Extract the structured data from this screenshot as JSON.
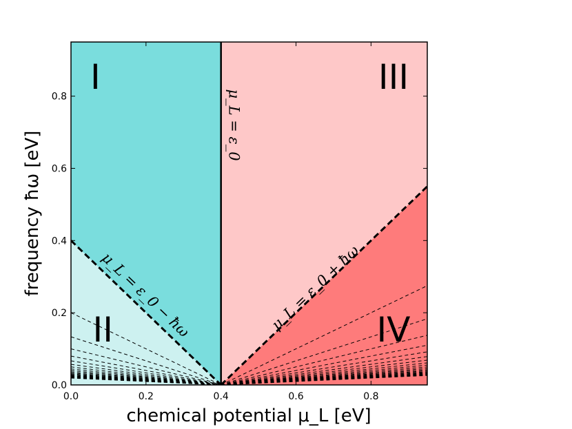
{
  "chart_data": {
    "type": "area",
    "xlabel": "chemical potential μ_L [eV]",
    "ylabel": "frequency ħω [eV]",
    "xlim": [
      0.0,
      0.95
    ],
    "ylim": [
      0.0,
      0.95
    ],
    "x_ticks": [
      "0.0",
      "0.2",
      "0.4",
      "0.6",
      "0.8"
    ],
    "y_ticks": [
      "0.0",
      "0.2",
      "0.4",
      "0.6",
      "0.8"
    ],
    "epsilon0": 0.4,
    "region_labels": [
      "I",
      "II",
      "III",
      "IV"
    ],
    "region_colors": {
      "I": "#7adddd",
      "II": "#cdf1f0",
      "III": "#fec8c8",
      "IV": "#fe7b7b"
    },
    "boundaries": [
      {
        "label": "μ_L = ε_0",
        "type": "vertical",
        "x": 0.4
      },
      {
        "label": "μ_L = ε_0 − ħω",
        "type": "line",
        "points": [
          [
            0.0,
            0.4
          ],
          [
            0.4,
            0.0
          ]
        ]
      },
      {
        "label": "μ_L = ε_0 + ħω",
        "type": "line",
        "points": [
          [
            0.4,
            0.0
          ],
          [
            0.95,
            0.55
          ]
        ]
      }
    ],
    "fan_lines_left_y0": [
      0.2,
      0.1333,
      0.1,
      0.08,
      0.0667,
      0.0571,
      0.05,
      0.0444,
      0.04,
      0.0364,
      0.0333,
      0.0308,
      0.0286,
      0.0267,
      0.025,
      0.0235,
      0.0222,
      0.0211,
      0.02,
      0.019
    ],
    "fan_lines_right_y_at_095": [
      0.275,
      0.1833,
      0.1375,
      0.11,
      0.0917,
      0.0786,
      0.0688,
      0.0611,
      0.055,
      0.05,
      0.0458,
      0.0423,
      0.0393,
      0.0367,
      0.0344,
      0.0324,
      0.0306,
      0.0289,
      0.0275,
      0.0262
    ]
  }
}
